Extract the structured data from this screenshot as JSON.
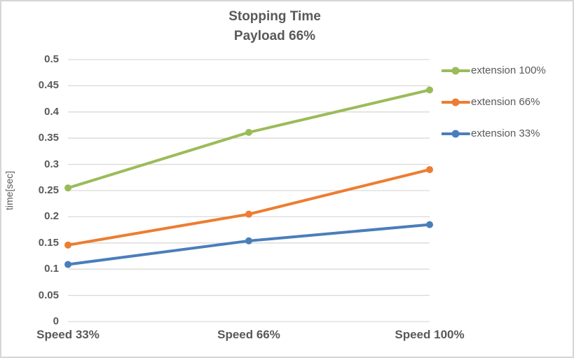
{
  "chart_data": {
    "type": "line",
    "title": "Stopping Time",
    "subtitle": "Payload 66%",
    "categories": [
      "Speed 33%",
      "Speed 66%",
      "Speed 100%"
    ],
    "series": [
      {
        "name": "extension 100%",
        "color": "#9BBB59",
        "values": [
          0.255,
          0.361,
          0.442
        ]
      },
      {
        "name": "extension 66%",
        "color": "#ED7D31",
        "values": [
          0.146,
          0.205,
          0.29
        ]
      },
      {
        "name": "extension 33%",
        "color": "#4A7EBB",
        "values": [
          0.109,
          0.154,
          0.185
        ]
      }
    ],
    "xlabel": "",
    "ylabel": "time[sec]",
    "ylim": [
      0,
      0.5
    ],
    "yticks": [
      "0",
      "0.05",
      "0.1",
      "0.15",
      "0.2",
      "0.25",
      "0.3",
      "0.35",
      "0.4",
      "0.45",
      "0.5"
    ],
    "grid": true,
    "legend_position": "right",
    "gridline_color": "#D9D9D9",
    "text_color": "#595959",
    "marker": "circle",
    "line_width": 4
  }
}
